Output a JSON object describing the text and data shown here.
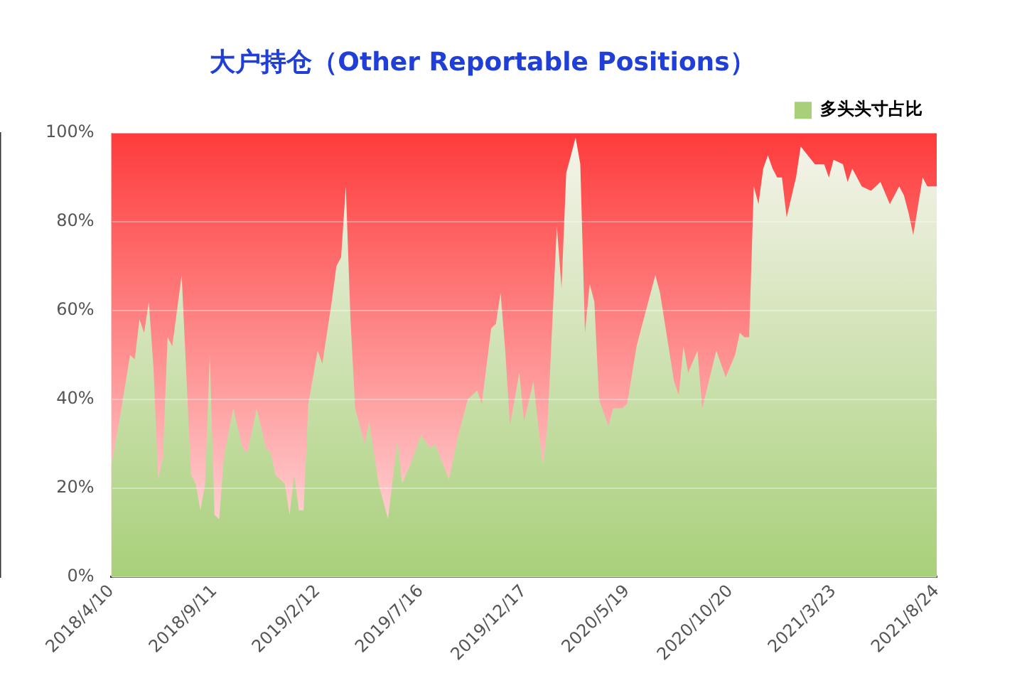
{
  "chart_data": {
    "type": "area",
    "title": "大户持仓（Other Reportable Positions）",
    "series": [
      {
        "name": "多头头寸占比",
        "color": "#a8d07a",
        "x": [
          "2018-04-10",
          "2018-04-24",
          "2018-05-08",
          "2018-05-15",
          "2018-05-22",
          "2018-05-29",
          "2018-06-05",
          "2018-06-12",
          "2018-06-19",
          "2018-06-26",
          "2018-07-03",
          "2018-07-10",
          "2018-07-24",
          "2018-08-07",
          "2018-08-14",
          "2018-08-21",
          "2018-08-28",
          "2018-09-04",
          "2018-09-11",
          "2018-09-18",
          "2018-09-25",
          "2018-10-09",
          "2018-10-23",
          "2018-10-30",
          "2018-11-13",
          "2018-11-27",
          "2018-12-04",
          "2018-12-11",
          "2018-12-25",
          "2019-01-01",
          "2019-01-08",
          "2019-01-15",
          "2019-01-22",
          "2019-01-29",
          "2019-02-12",
          "2019-02-19",
          "2019-03-05",
          "2019-03-12",
          "2019-03-19",
          "2019-03-26",
          "2019-04-02",
          "2019-04-09",
          "2019-04-23",
          "2019-04-30",
          "2019-05-14",
          "2019-05-28",
          "2019-06-11",
          "2019-06-18",
          "2019-07-02",
          "2019-07-16",
          "2019-07-30",
          "2019-08-06",
          "2019-08-27",
          "2019-09-10",
          "2019-09-24",
          "2019-10-08",
          "2019-10-15",
          "2019-10-29",
          "2019-11-05",
          "2019-11-12",
          "2019-11-19",
          "2019-11-26",
          "2019-12-10",
          "2019-12-17",
          "2019-12-31",
          "2020-01-14",
          "2020-01-21",
          "2020-02-04",
          "2020-02-11",
          "2020-02-18",
          "2020-03-03",
          "2020-03-10",
          "2020-03-17",
          "2020-03-24",
          "2020-03-31",
          "2020-04-07",
          "2020-04-21",
          "2020-04-28",
          "2020-05-12",
          "2020-05-19",
          "2020-06-02",
          "2020-06-16",
          "2020-06-30",
          "2020-07-07",
          "2020-07-28",
          "2020-08-04",
          "2020-08-11",
          "2020-08-18",
          "2020-09-01",
          "2020-09-08",
          "2020-09-29",
          "2020-10-13",
          "2020-10-27",
          "2020-11-03",
          "2020-11-10",
          "2020-11-17",
          "2020-11-24",
          "2020-12-01",
          "2020-12-08",
          "2020-12-15",
          "2020-12-22",
          "2020-12-29",
          "2021-01-05",
          "2021-01-12",
          "2021-01-26",
          "2021-02-02",
          "2021-02-23",
          "2021-03-09",
          "2021-03-16",
          "2021-03-23",
          "2021-04-06",
          "2021-04-13",
          "2021-04-20",
          "2021-05-04",
          "2021-05-18",
          "2021-06-01",
          "2021-06-15",
          "2021-06-29",
          "2021-07-06",
          "2021-07-13",
          "2021-07-20",
          "2021-08-03",
          "2021-08-10",
          "2021-08-24"
        ],
        "values": [
          25,
          37,
          50,
          49,
          58,
          55,
          62,
          47,
          22,
          27,
          54,
          52,
          68,
          23,
          21,
          15,
          21,
          50,
          14,
          13,
          27,
          38,
          29,
          28,
          38,
          29,
          28,
          23,
          21,
          14,
          23,
          15,
          15,
          39,
          51,
          48,
          62,
          70,
          72,
          88,
          58,
          38,
          30,
          35,
          21,
          13,
          31,
          21,
          26,
          32,
          29,
          30,
          22,
          32,
          40,
          42,
          39,
          56,
          57,
          64,
          51,
          34,
          46,
          35,
          44,
          25,
          34,
          79,
          65,
          91,
          99,
          93,
          55,
          66,
          62,
          40,
          34,
          38,
          38,
          39,
          52,
          60,
          68,
          64,
          44,
          41,
          52,
          46,
          51,
          38,
          51,
          45,
          50,
          55,
          54,
          54,
          88,
          84,
          92,
          95,
          92,
          90,
          90,
          81,
          90,
          97,
          93,
          93,
          90,
          94,
          93,
          89,
          92,
          88,
          87,
          89,
          84,
          88,
          86,
          82,
          77,
          90,
          88,
          88
        ]
      }
    ],
    "xlim": [
      "2018-04-10",
      "2021-08-24"
    ],
    "xticks": [
      {
        "value": "2018-04-10",
        "label": "2018/4/10"
      },
      {
        "value": "2018-09-11",
        "label": "2018/9/11"
      },
      {
        "value": "2019-02-12",
        "label": "2019/2/12"
      },
      {
        "value": "2019-07-16",
        "label": "2019/7/16"
      },
      {
        "value": "2019-12-17",
        "label": "2019/12/17"
      },
      {
        "value": "2020-05-19",
        "label": "2020/5/19"
      },
      {
        "value": "2020-10-20",
        "label": "2020/10/20"
      },
      {
        "value": "2021-03-23",
        "label": "2021/3/23"
      },
      {
        "value": "2021-08-24",
        "label": "2021/8/24"
      }
    ],
    "ylim": [
      0,
      100
    ],
    "yticks": [
      {
        "value": 0,
        "label": "0%"
      },
      {
        "value": 20,
        "label": "20%"
      },
      {
        "value": 40,
        "label": "40%"
      },
      {
        "value": 60,
        "label": "60%"
      },
      {
        "value": 80,
        "label": "80%"
      },
      {
        "value": 100,
        "label": "100%"
      }
    ],
    "grid": "y",
    "legend": "top right"
  }
}
